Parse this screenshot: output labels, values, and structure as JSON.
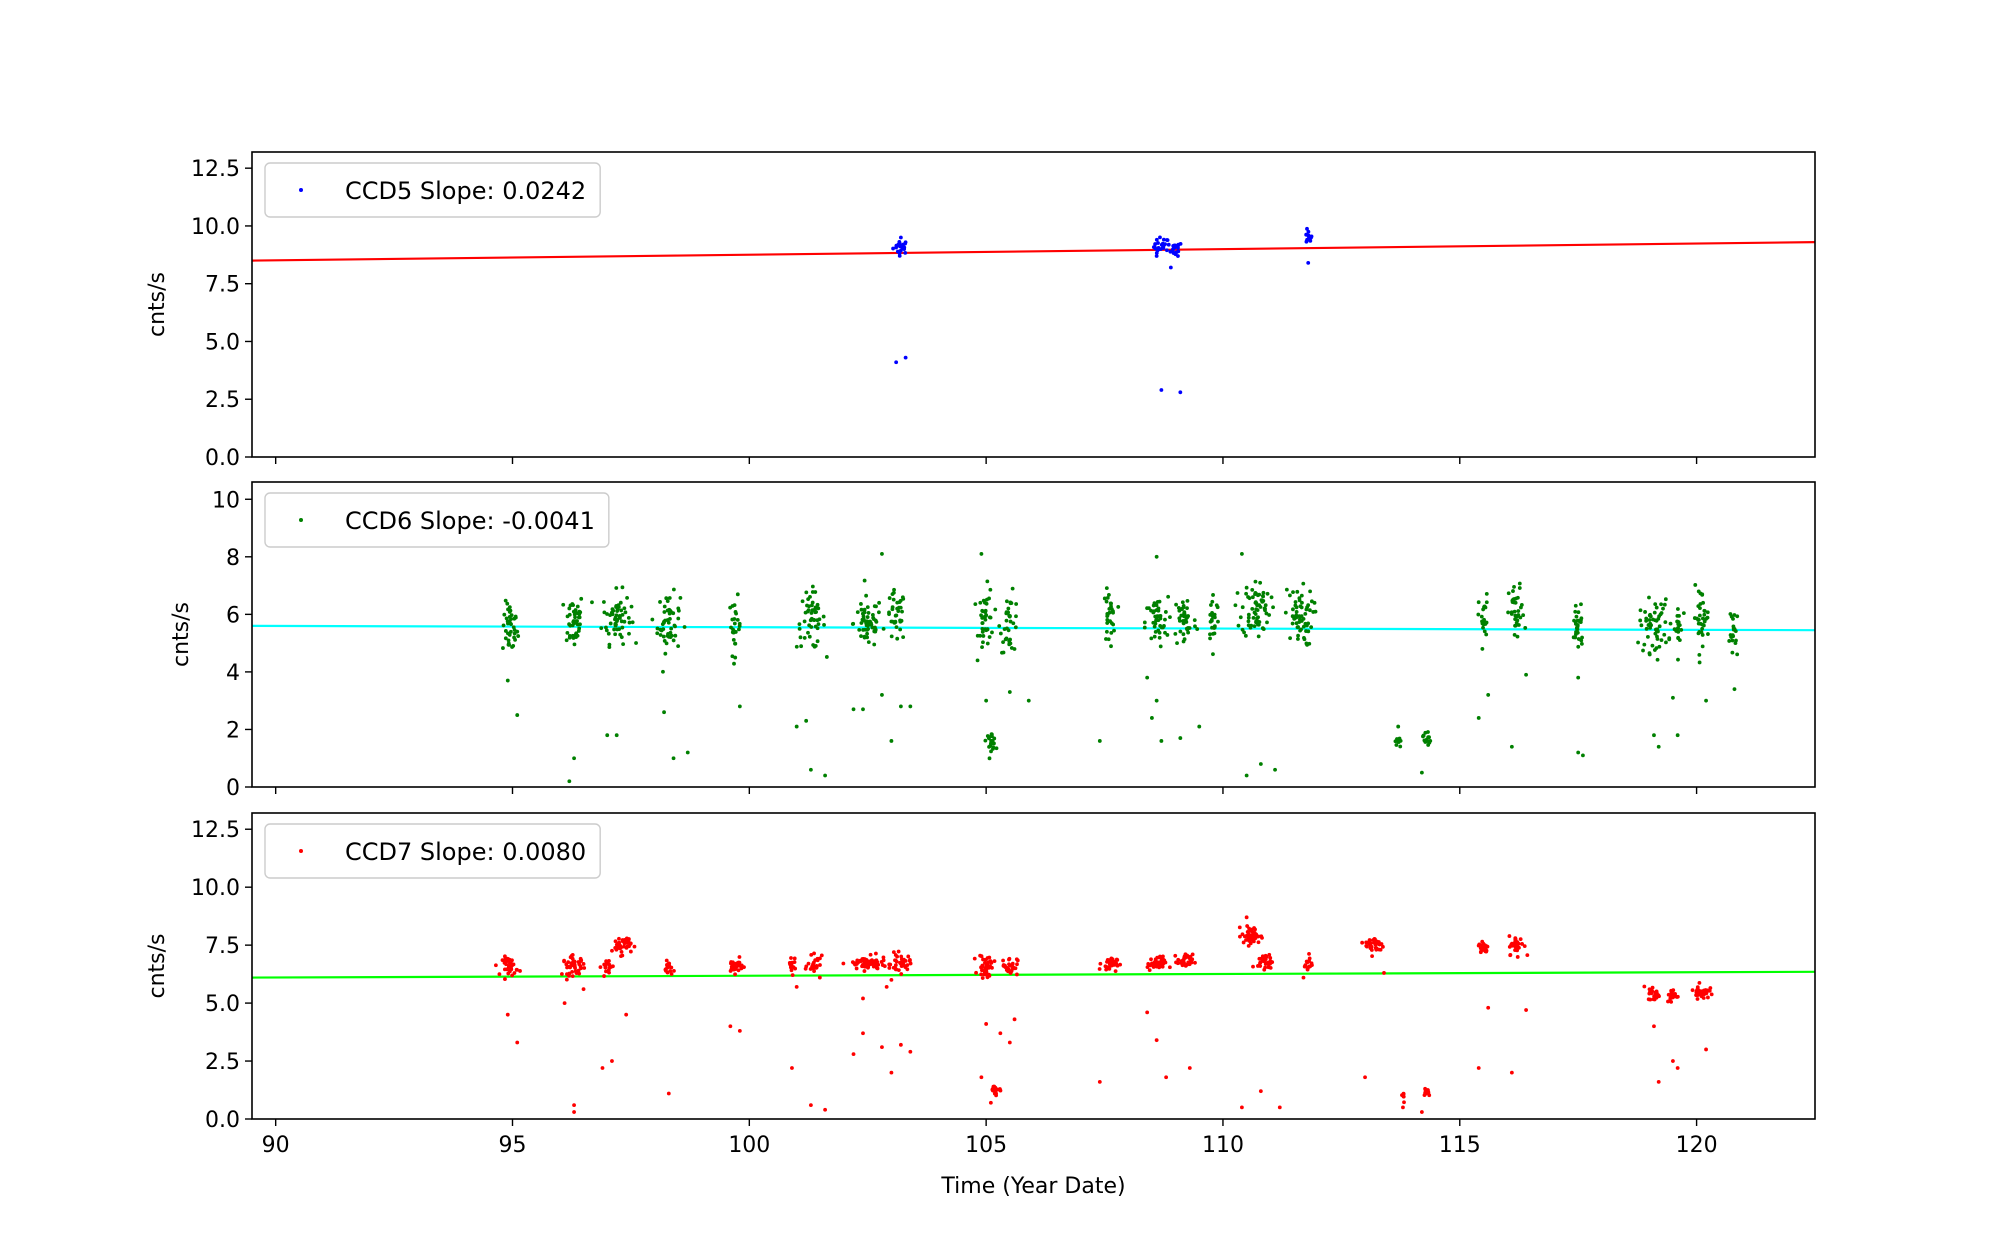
{
  "chart_data": [
    {
      "type": "scatter",
      "legend": {
        "label": "CCD5 Slope: 0.0242",
        "placement": "upper-left"
      },
      "ylabel": "cnts/s",
      "xlim": [
        89.5,
        122.5
      ],
      "ylim": [
        0,
        13.2
      ],
      "yticks": [
        "0.0",
        "2.5",
        "5.0",
        "7.5",
        "10.0",
        "12.5"
      ],
      "ytick_values": [
        0,
        2.5,
        5,
        7.5,
        10,
        12.5
      ],
      "point_color": "#0000ff",
      "fit_color": "#ff0000",
      "fit_line": {
        "x": [
          89.5,
          122.5
        ],
        "y": [
          8.5,
          9.3
        ]
      },
      "clusters": [
        {
          "x": 103.2,
          "y": 9.1,
          "n": 22,
          "xs": 0.08,
          "ys": 0.15
        },
        {
          "x": 108.7,
          "y": 9.1,
          "n": 22,
          "xs": 0.08,
          "ys": 0.2
        },
        {
          "x": 109.0,
          "y": 9.0,
          "n": 18,
          "xs": 0.07,
          "ys": 0.15
        },
        {
          "x": 111.8,
          "y": 9.5,
          "n": 12,
          "xs": 0.04,
          "ys": 0.15
        }
      ],
      "points": [
        {
          "x": 103.1,
          "y": 4.1
        },
        {
          "x": 103.3,
          "y": 4.3
        },
        {
          "x": 108.7,
          "y": 2.9
        },
        {
          "x": 109.1,
          "y": 2.8
        },
        {
          "x": 108.6,
          "y": 8.7
        },
        {
          "x": 108.9,
          "y": 8.2
        },
        {
          "x": 111.8,
          "y": 8.4
        },
        {
          "x": 103.2,
          "y": 9.5
        }
      ]
    },
    {
      "type": "scatter",
      "legend": {
        "label": "CCD6 Slope: -0.0041",
        "placement": "upper-left"
      },
      "ylabel": "cnts/s",
      "xlim": [
        89.5,
        122.5
      ],
      "ylim": [
        0,
        10.6
      ],
      "yticks": [
        "0",
        "2",
        "4",
        "6",
        "8",
        "10"
      ],
      "ytick_values": [
        0,
        2,
        4,
        6,
        8,
        10
      ],
      "point_color": "#008000",
      "fit_color": "#00ffff",
      "fit_line": {
        "x": [
          89.5,
          122.5
        ],
        "y": [
          5.6,
          5.45
        ]
      },
      "clusters": [
        {
          "x": 94.95,
          "y": 5.5,
          "n": 40,
          "xs": 0.08,
          "ys": 0.45
        },
        {
          "x": 96.3,
          "y": 5.8,
          "n": 45,
          "xs": 0.1,
          "ys": 0.5
        },
        {
          "x": 97.2,
          "y": 5.9,
          "n": 60,
          "xs": 0.15,
          "ys": 0.45
        },
        {
          "x": 98.3,
          "y": 5.7,
          "n": 50,
          "xs": 0.12,
          "ys": 0.5
        },
        {
          "x": 99.7,
          "y": 5.6,
          "n": 25,
          "xs": 0.06,
          "ys": 0.5
        },
        {
          "x": 101.3,
          "y": 5.8,
          "n": 50,
          "xs": 0.15,
          "ys": 0.5
        },
        {
          "x": 102.5,
          "y": 5.7,
          "n": 55,
          "xs": 0.15,
          "ys": 0.45
        },
        {
          "x": 103.1,
          "y": 5.9,
          "n": 35,
          "xs": 0.1,
          "ys": 0.45
        },
        {
          "x": 105.0,
          "y": 5.8,
          "n": 40,
          "xs": 0.08,
          "ys": 0.55
        },
        {
          "x": 105.5,
          "y": 5.7,
          "n": 35,
          "xs": 0.1,
          "ys": 0.5
        },
        {
          "x": 105.1,
          "y": 1.6,
          "n": 25,
          "xs": 0.05,
          "ys": 0.15
        },
        {
          "x": 107.6,
          "y": 5.9,
          "n": 30,
          "xs": 0.06,
          "ys": 0.45
        },
        {
          "x": 108.6,
          "y": 5.7,
          "n": 45,
          "xs": 0.12,
          "ys": 0.45
        },
        {
          "x": 109.2,
          "y": 5.8,
          "n": 40,
          "xs": 0.12,
          "ys": 0.5
        },
        {
          "x": 109.8,
          "y": 5.9,
          "n": 25,
          "xs": 0.06,
          "ys": 0.45
        },
        {
          "x": 110.7,
          "y": 6.2,
          "n": 70,
          "xs": 0.15,
          "ys": 0.5
        },
        {
          "x": 111.6,
          "y": 5.9,
          "n": 60,
          "xs": 0.15,
          "ys": 0.5
        },
        {
          "x": 113.7,
          "y": 1.6,
          "n": 10,
          "xs": 0.03,
          "ys": 0.15
        },
        {
          "x": 114.3,
          "y": 1.7,
          "n": 14,
          "xs": 0.04,
          "ys": 0.15
        },
        {
          "x": 115.5,
          "y": 5.8,
          "n": 25,
          "xs": 0.05,
          "ys": 0.45
        },
        {
          "x": 116.2,
          "y": 6.0,
          "n": 35,
          "xs": 0.08,
          "ys": 0.5
        },
        {
          "x": 117.5,
          "y": 5.6,
          "n": 30,
          "xs": 0.06,
          "ys": 0.45
        },
        {
          "x": 119.1,
          "y": 5.6,
          "n": 55,
          "xs": 0.15,
          "ys": 0.45
        },
        {
          "x": 119.6,
          "y": 5.5,
          "n": 20,
          "xs": 0.05,
          "ys": 0.45
        },
        {
          "x": 120.1,
          "y": 5.9,
          "n": 35,
          "xs": 0.08,
          "ys": 0.5
        },
        {
          "x": 120.8,
          "y": 5.3,
          "n": 20,
          "xs": 0.05,
          "ys": 0.45
        }
      ],
      "points": [
        {
          "x": 94.9,
          "y": 3.7
        },
        {
          "x": 95.1,
          "y": 2.5
        },
        {
          "x": 96.3,
          "y": 1.0
        },
        {
          "x": 96.2,
          "y": 0.2
        },
        {
          "x": 97.0,
          "y": 1.8
        },
        {
          "x": 97.2,
          "y": 1.8
        },
        {
          "x": 98.2,
          "y": 2.6
        },
        {
          "x": 98.4,
          "y": 1.0
        },
        {
          "x": 98.7,
          "y": 1.2
        },
        {
          "x": 99.8,
          "y": 2.8
        },
        {
          "x": 101.0,
          "y": 2.1
        },
        {
          "x": 101.2,
          "y": 2.3
        },
        {
          "x": 101.3,
          "y": 0.6
        },
        {
          "x": 101.6,
          "y": 0.4
        },
        {
          "x": 102.2,
          "y": 2.7
        },
        {
          "x": 102.4,
          "y": 2.7
        },
        {
          "x": 102.8,
          "y": 3.2
        },
        {
          "x": 103.0,
          "y": 1.6
        },
        {
          "x": 103.2,
          "y": 2.8
        },
        {
          "x": 103.4,
          "y": 2.8
        },
        {
          "x": 102.8,
          "y": 8.1
        },
        {
          "x": 104.9,
          "y": 8.1
        },
        {
          "x": 105.0,
          "y": 3.0
        },
        {
          "x": 105.5,
          "y": 3.3
        },
        {
          "x": 105.9,
          "y": 3.0
        },
        {
          "x": 107.4,
          "y": 1.6
        },
        {
          "x": 108.4,
          "y": 3.8
        },
        {
          "x": 108.5,
          "y": 2.4
        },
        {
          "x": 108.6,
          "y": 3.0
        },
        {
          "x": 108.7,
          "y": 1.6
        },
        {
          "x": 109.1,
          "y": 1.7
        },
        {
          "x": 109.5,
          "y": 2.1
        },
        {
          "x": 108.6,
          "y": 8.0
        },
        {
          "x": 110.4,
          "y": 8.1
        },
        {
          "x": 110.5,
          "y": 0.4
        },
        {
          "x": 110.8,
          "y": 0.8
        },
        {
          "x": 111.1,
          "y": 0.6
        },
        {
          "x": 113.7,
          "y": 2.1
        },
        {
          "x": 114.2,
          "y": 0.5
        },
        {
          "x": 115.4,
          "y": 2.4
        },
        {
          "x": 115.6,
          "y": 3.2
        },
        {
          "x": 116.1,
          "y": 1.4
        },
        {
          "x": 116.4,
          "y": 3.9
        },
        {
          "x": 117.5,
          "y": 1.2
        },
        {
          "x": 117.6,
          "y": 1.1
        },
        {
          "x": 117.5,
          "y": 3.8
        },
        {
          "x": 119.1,
          "y": 1.8
        },
        {
          "x": 119.2,
          "y": 1.4
        },
        {
          "x": 119.5,
          "y": 3.1
        },
        {
          "x": 119.6,
          "y": 1.8
        },
        {
          "x": 120.2,
          "y": 3.0
        },
        {
          "x": 120.8,
          "y": 3.4
        }
      ]
    },
    {
      "type": "scatter",
      "legend": {
        "label": "CCD7 Slope: 0.0080",
        "placement": "upper-left"
      },
      "ylabel": "cnts/s",
      "xlabel": "Time (Year Date)",
      "xlim": [
        89.5,
        122.5
      ],
      "ylim": [
        0,
        13.2
      ],
      "yticks": [
        "0.0",
        "2.5",
        "5.0",
        "7.5",
        "10.0",
        "12.5"
      ],
      "ytick_values": [
        0,
        2.5,
        5,
        7.5,
        10,
        12.5
      ],
      "xticks": [
        "90",
        "95",
        "100",
        "105",
        "110",
        "115",
        "120"
      ],
      "xtick_values": [
        90,
        95,
        100,
        105,
        110,
        115,
        120
      ],
      "point_color": "#ff0000",
      "fit_color": "#00ff00",
      "fit_line": {
        "x": [
          89.5,
          122.5
        ],
        "y": [
          6.1,
          6.35
        ]
      },
      "clusters": [
        {
          "x": 94.95,
          "y": 6.6,
          "n": 40,
          "xs": 0.08,
          "ys": 0.2
        },
        {
          "x": 96.3,
          "y": 6.6,
          "n": 45,
          "xs": 0.12,
          "ys": 0.2
        },
        {
          "x": 97.0,
          "y": 6.6,
          "n": 20,
          "xs": 0.06,
          "ys": 0.2
        },
        {
          "x": 97.3,
          "y": 7.5,
          "n": 40,
          "xs": 0.1,
          "ys": 0.2
        },
        {
          "x": 98.3,
          "y": 6.5,
          "n": 20,
          "xs": 0.04,
          "ys": 0.15
        },
        {
          "x": 99.7,
          "y": 6.6,
          "n": 30,
          "xs": 0.08,
          "ys": 0.15
        },
        {
          "x": 100.9,
          "y": 6.7,
          "n": 15,
          "xs": 0.04,
          "ys": 0.2
        },
        {
          "x": 101.4,
          "y": 6.6,
          "n": 25,
          "xs": 0.08,
          "ys": 0.2
        },
        {
          "x": 102.5,
          "y": 6.7,
          "n": 70,
          "xs": 0.2,
          "ys": 0.15
        },
        {
          "x": 103.2,
          "y": 6.7,
          "n": 35,
          "xs": 0.1,
          "ys": 0.2
        },
        {
          "x": 105.0,
          "y": 6.6,
          "n": 40,
          "xs": 0.08,
          "ys": 0.25
        },
        {
          "x": 105.5,
          "y": 6.6,
          "n": 30,
          "xs": 0.08,
          "ys": 0.2
        },
        {
          "x": 105.2,
          "y": 1.25,
          "n": 18,
          "xs": 0.08,
          "ys": 0.1
        },
        {
          "x": 107.6,
          "y": 6.7,
          "n": 30,
          "xs": 0.08,
          "ys": 0.15
        },
        {
          "x": 108.6,
          "y": 6.7,
          "n": 40,
          "xs": 0.1,
          "ys": 0.15
        },
        {
          "x": 109.2,
          "y": 6.8,
          "n": 30,
          "xs": 0.08,
          "ys": 0.15
        },
        {
          "x": 110.6,
          "y": 7.9,
          "n": 50,
          "xs": 0.1,
          "ys": 0.2
        },
        {
          "x": 110.9,
          "y": 6.8,
          "n": 35,
          "xs": 0.08,
          "ys": 0.15
        },
        {
          "x": 111.8,
          "y": 6.7,
          "n": 15,
          "xs": 0.04,
          "ys": 0.2
        },
        {
          "x": 113.2,
          "y": 7.5,
          "n": 35,
          "xs": 0.1,
          "ys": 0.2
        },
        {
          "x": 113.8,
          "y": 1.1,
          "n": 6,
          "xs": 0.02,
          "ys": 0.2
        },
        {
          "x": 114.3,
          "y": 1.2,
          "n": 14,
          "xs": 0.04,
          "ys": 0.1
        },
        {
          "x": 115.5,
          "y": 7.4,
          "n": 25,
          "xs": 0.05,
          "ys": 0.15
        },
        {
          "x": 116.2,
          "y": 7.5,
          "n": 35,
          "xs": 0.08,
          "ys": 0.2
        },
        {
          "x": 119.1,
          "y": 5.4,
          "n": 25,
          "xs": 0.06,
          "ys": 0.15
        },
        {
          "x": 119.5,
          "y": 5.3,
          "n": 25,
          "xs": 0.06,
          "ys": 0.15
        },
        {
          "x": 120.1,
          "y": 5.5,
          "n": 40,
          "xs": 0.08,
          "ys": 0.15
        }
      ],
      "points": [
        {
          "x": 94.9,
          "y": 4.5
        },
        {
          "x": 95.1,
          "y": 3.3
        },
        {
          "x": 96.1,
          "y": 5.0
        },
        {
          "x": 96.3,
          "y": 0.3
        },
        {
          "x": 96.3,
          "y": 0.6
        },
        {
          "x": 96.5,
          "y": 5.6
        },
        {
          "x": 96.9,
          "y": 2.2
        },
        {
          "x": 97.1,
          "y": 2.5
        },
        {
          "x": 97.4,
          "y": 4.5
        },
        {
          "x": 98.3,
          "y": 1.1
        },
        {
          "x": 99.6,
          "y": 4.0
        },
        {
          "x": 99.8,
          "y": 3.8
        },
        {
          "x": 100.9,
          "y": 2.2
        },
        {
          "x": 101.0,
          "y": 5.7
        },
        {
          "x": 101.3,
          "y": 0.6
        },
        {
          "x": 101.6,
          "y": 0.4
        },
        {
          "x": 102.2,
          "y": 2.8
        },
        {
          "x": 102.4,
          "y": 5.2
        },
        {
          "x": 102.4,
          "y": 3.7
        },
        {
          "x": 102.8,
          "y": 3.1
        },
        {
          "x": 102.9,
          "y": 5.7
        },
        {
          "x": 103.0,
          "y": 2.0
        },
        {
          "x": 103.2,
          "y": 3.2
        },
        {
          "x": 103.4,
          "y": 2.9
        },
        {
          "x": 103.0,
          "y": 6.0
        },
        {
          "x": 104.9,
          "y": 1.8
        },
        {
          "x": 105.0,
          "y": 4.1
        },
        {
          "x": 105.1,
          "y": 0.7
        },
        {
          "x": 105.3,
          "y": 3.7
        },
        {
          "x": 105.5,
          "y": 3.3
        },
        {
          "x": 105.6,
          "y": 4.3
        },
        {
          "x": 107.4,
          "y": 1.6
        },
        {
          "x": 108.4,
          "y": 4.6
        },
        {
          "x": 108.6,
          "y": 3.4
        },
        {
          "x": 108.8,
          "y": 1.8
        },
        {
          "x": 109.3,
          "y": 2.2
        },
        {
          "x": 110.4,
          "y": 0.5
        },
        {
          "x": 110.5,
          "y": 8.7
        },
        {
          "x": 110.8,
          "y": 1.2
        },
        {
          "x": 111.2,
          "y": 0.5
        },
        {
          "x": 111.7,
          "y": 6.1
        },
        {
          "x": 113.0,
          "y": 1.8
        },
        {
          "x": 113.4,
          "y": 6.3
        },
        {
          "x": 113.8,
          "y": 0.5
        },
        {
          "x": 114.2,
          "y": 0.3
        },
        {
          "x": 115.4,
          "y": 2.2
        },
        {
          "x": 115.6,
          "y": 4.8
        },
        {
          "x": 116.1,
          "y": 2.0
        },
        {
          "x": 116.4,
          "y": 4.7
        },
        {
          "x": 119.1,
          "y": 4.0
        },
        {
          "x": 119.2,
          "y": 1.6
        },
        {
          "x": 119.5,
          "y": 2.5
        },
        {
          "x": 119.6,
          "y": 2.2
        },
        {
          "x": 120.2,
          "y": 3.0
        }
      ]
    }
  ]
}
